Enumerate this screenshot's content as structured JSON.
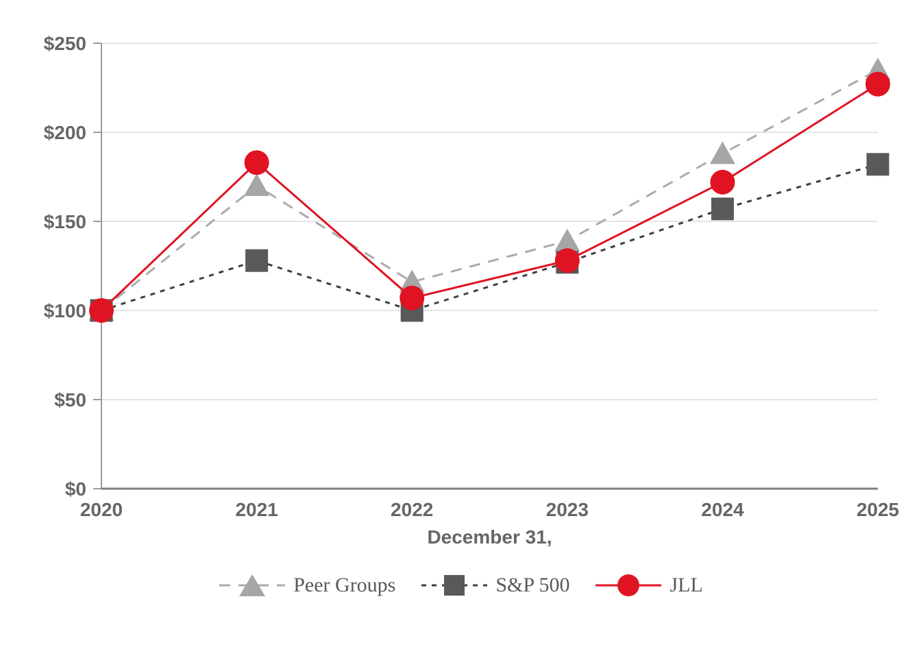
{
  "chart_data": {
    "type": "line",
    "title": "",
    "xlabel": "December 31,",
    "ylabel": "",
    "x_categories": [
      "2020",
      "2021",
      "2022",
      "2023",
      "2024",
      "2025"
    ],
    "y_tick_labels": [
      "$0",
      "$50",
      "$100",
      "$150",
      "$200",
      "$250"
    ],
    "ylim": [
      0,
      250
    ],
    "y_tick_step": 50,
    "grid": "horizontal",
    "legend_position": "bottom",
    "series": [
      {
        "name": "Peer Groups",
        "marker": "triangle",
        "line_style": "long-dash",
        "line_color": "#ababab",
        "marker_color": "#a6a6a6",
        "values": [
          100,
          170,
          116,
          139,
          188,
          235
        ]
      },
      {
        "name": "S&P 500",
        "marker": "square",
        "line_style": "short-dash",
        "line_color": "#3f3f3f",
        "marker_color": "#595959",
        "values": [
          100,
          128,
          100,
          127,
          157,
          182
        ]
      },
      {
        "name": "JLL",
        "marker": "circle",
        "line_style": "solid",
        "line_color": "#e01322",
        "marker_color": "#e01322",
        "values": [
          100,
          183,
          107,
          128,
          172,
          227
        ]
      }
    ],
    "colors": {
      "grid": "#dcdcdc",
      "y_axis": "#9b9b9b",
      "x_axis": "#7f7f7f",
      "tick_text": "#666666",
      "legend_text": "#595959"
    }
  }
}
